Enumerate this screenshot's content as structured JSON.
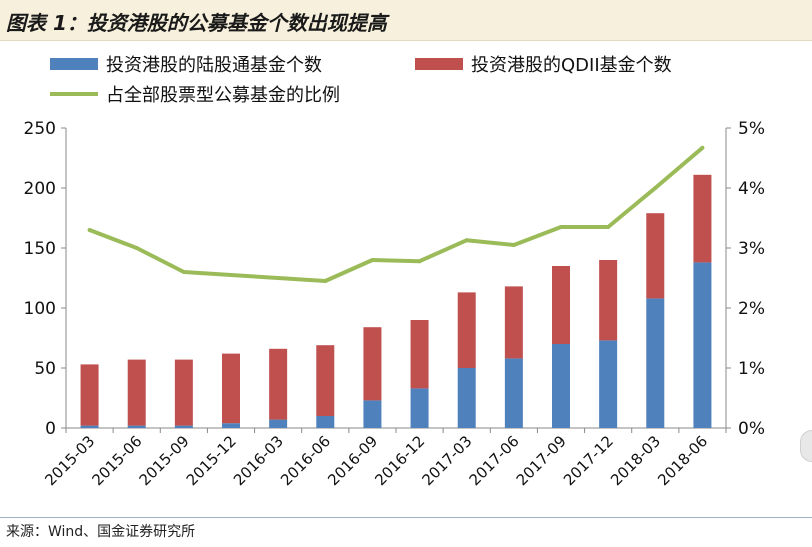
{
  "title": "图表 1：投资港股的公募基金个数出现提高",
  "source": "来源：Wind、国金证券研究所",
  "chart_data": {
    "type": "bar",
    "stacked": true,
    "categories": [
      "2015-03",
      "2015-06",
      "2015-09",
      "2015-12",
      "2016-03",
      "2016-06",
      "2016-09",
      "2016-12",
      "2017-03",
      "2017-06",
      "2017-09",
      "2017-12",
      "2018-03",
      "2018-06"
    ],
    "series": [
      {
        "name": "投资港股的陆股通基金个数",
        "color": "#4f81bd",
        "axis": "left",
        "values": [
          2,
          2,
          2,
          4,
          7,
          10,
          23,
          33,
          50,
          58,
          70,
          73,
          108,
          138
        ]
      },
      {
        "name": "投资港股的QDII基金个数",
        "color": "#c0504d",
        "axis": "left",
        "values": [
          51,
          55,
          55,
          58,
          59,
          59,
          61,
          57,
          63,
          60,
          65,
          67,
          71,
          73
        ]
      },
      {
        "name": "占全部股票型公募基金的比例",
        "color": "#9bbb59",
        "axis": "right",
        "type": "line",
        "values": [
          3.3,
          3.0,
          2.6,
          2.55,
          2.5,
          2.45,
          2.8,
          2.78,
          3.13,
          3.05,
          3.35,
          3.35,
          4.0,
          4.67
        ]
      }
    ],
    "ylim": [
      0,
      250
    ],
    "yticks": [
      "0",
      "50",
      "100",
      "150",
      "200",
      "250"
    ],
    "y2lim": [
      0,
      5
    ],
    "y2ticks": [
      "0%",
      "1%",
      "2%",
      "3%",
      "4%",
      "5%"
    ],
    "legend": "top",
    "grid": false
  }
}
